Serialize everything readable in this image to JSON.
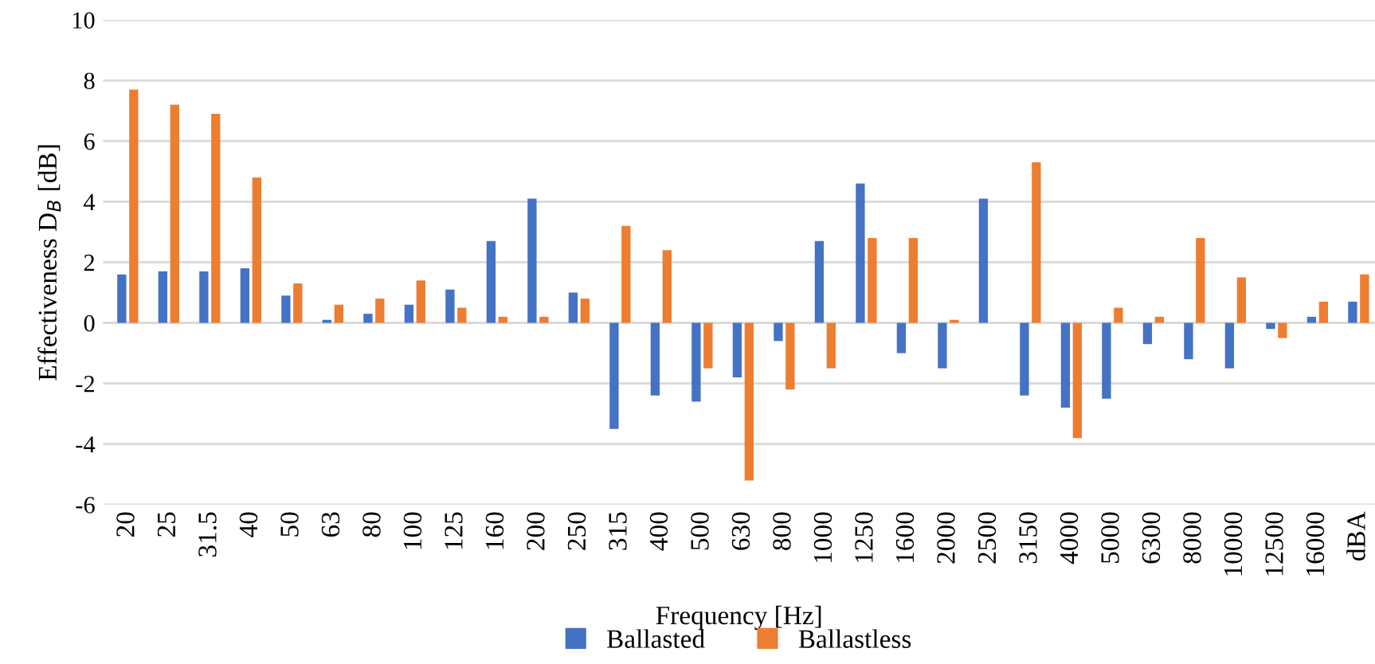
{
  "chart_data": {
    "type": "bar",
    "xlabel": "Frequency [Hz]",
    "ylabel": "Effectiveness D$_{B}$ [dB]",
    "categories": [
      "20",
      "25",
      "31.5",
      "40",
      "50",
      "63",
      "80",
      "100",
      "125",
      "160",
      "200",
      "250",
      "315",
      "400",
      "500",
      "630",
      "800",
      "1000",
      "1250",
      "1600",
      "2000",
      "2500",
      "3150",
      "4000",
      "5000",
      "6300",
      "8000",
      "10000",
      "12500",
      "16000",
      "dBA"
    ],
    "series": [
      {
        "name": "Ballasted",
        "color": "#4472c4",
        "values": [
          1.6,
          1.7,
          1.7,
          1.8,
          0.9,
          0.1,
          0.3,
          0.6,
          1.1,
          2.7,
          4.1,
          1.0,
          -3.5,
          -2.4,
          -2.6,
          -1.8,
          -0.6,
          2.7,
          4.6,
          -1.0,
          -1.5,
          4.1,
          -2.4,
          -2.8,
          -2.5,
          -0.7,
          -1.2,
          -1.5,
          -0.2,
          0.2,
          0.7
        ]
      },
      {
        "name": "Ballastless",
        "color": "#ed7d31",
        "values": [
          7.7,
          7.2,
          6.9,
          4.8,
          1.3,
          0.6,
          0.8,
          1.4,
          0.5,
          0.2,
          0.2,
          0.8,
          3.2,
          2.4,
          -1.5,
          -5.2,
          -2.2,
          -1.5,
          2.8,
          2.8,
          0.1,
          null,
          5.3,
          -3.8,
          0.5,
          0.2,
          2.8,
          1.5,
          -0.5,
          0.7,
          1.6
        ]
      }
    ],
    "ylim": [
      -6,
      10
    ],
    "yticks": [
      -6,
      -4,
      -2,
      0,
      2,
      4,
      6,
      8,
      10
    ],
    "grid": "y",
    "legend": "bottom"
  }
}
